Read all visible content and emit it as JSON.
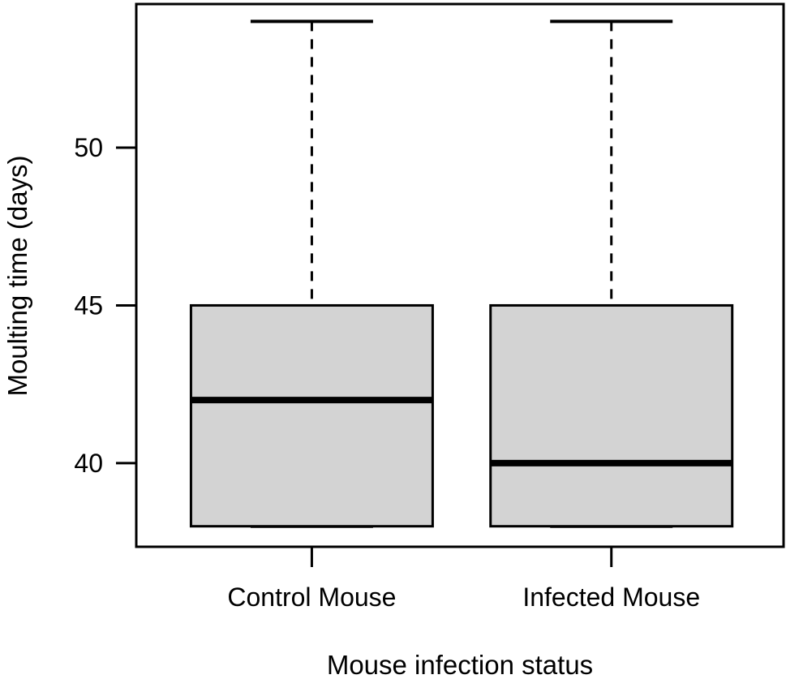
{
  "figure": {
    "background": "#ffffff"
  },
  "chart_data": {
    "type": "boxplot",
    "title": "",
    "xlabel": "Mouse infection status",
    "ylabel": "Moulting time (days)",
    "categories": [
      "Control Mouse",
      "Infected Mouse"
    ],
    "y_ticks": [
      40,
      45,
      50
    ],
    "ylim": [
      37.35,
      54.55
    ],
    "grid": false,
    "legend_position": "none",
    "groups": [
      {
        "label": "Control Mouse",
        "whisker_low": 38,
        "q1": 38,
        "median": 42,
        "q3": 45,
        "whisker_high": 54
      },
      {
        "label": "Infected Mouse",
        "whisker_low": 38,
        "q1": 38,
        "median": 40,
        "q3": 45,
        "whisker_high": 54
      }
    ],
    "colors": {
      "box_fill": "#d3d3d3",
      "stroke": "#000000",
      "text": "#000000"
    }
  }
}
